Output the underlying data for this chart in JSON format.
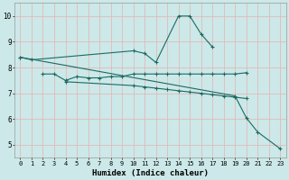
{
  "xlabel": "Humidex (Indice chaleur)",
  "xlim": [
    -0.5,
    23.5
  ],
  "ylim": [
    4.5,
    10.5
  ],
  "xticks": [
    0,
    1,
    2,
    3,
    4,
    5,
    6,
    7,
    8,
    9,
    10,
    11,
    12,
    13,
    14,
    15,
    16,
    17,
    18,
    19,
    20,
    21,
    22,
    23
  ],
  "yticks": [
    5,
    6,
    7,
    8,
    9,
    10
  ],
  "bg_color": "#cce8e8",
  "grid_color": "#e8b0b0",
  "line_color": "#1a6b63",
  "s1_x": [
    0,
    1,
    10,
    11,
    12,
    14,
    15,
    16,
    17
  ],
  "s1_y": [
    8.4,
    8.3,
    8.65,
    8.55,
    8.2,
    10.0,
    10.0,
    9.3,
    8.8
  ],
  "s2_x": [
    2,
    3,
    4,
    5,
    6,
    7,
    8,
    9,
    10,
    11,
    12,
    13,
    14,
    15,
    16,
    17,
    18,
    19,
    20
  ],
  "s2_y": [
    7.75,
    7.75,
    7.5,
    7.65,
    7.6,
    7.6,
    7.65,
    7.65,
    7.75,
    7.75,
    7.75,
    7.75,
    7.75,
    7.75,
    7.75,
    7.75,
    7.75,
    7.75,
    7.8
  ],
  "s3_x": [
    4,
    10,
    11,
    12,
    13,
    14,
    15,
    16,
    17,
    18,
    19,
    20
  ],
  "s3_y": [
    7.45,
    7.3,
    7.25,
    7.2,
    7.15,
    7.1,
    7.05,
    7.0,
    6.95,
    6.9,
    6.85,
    6.8
  ],
  "s4_x": [
    0,
    19,
    20,
    21,
    23
  ],
  "s4_y": [
    8.4,
    6.9,
    6.05,
    5.5,
    4.85
  ],
  "xlabel_fontsize": 6.5,
  "tick_fontsize": 5.0
}
